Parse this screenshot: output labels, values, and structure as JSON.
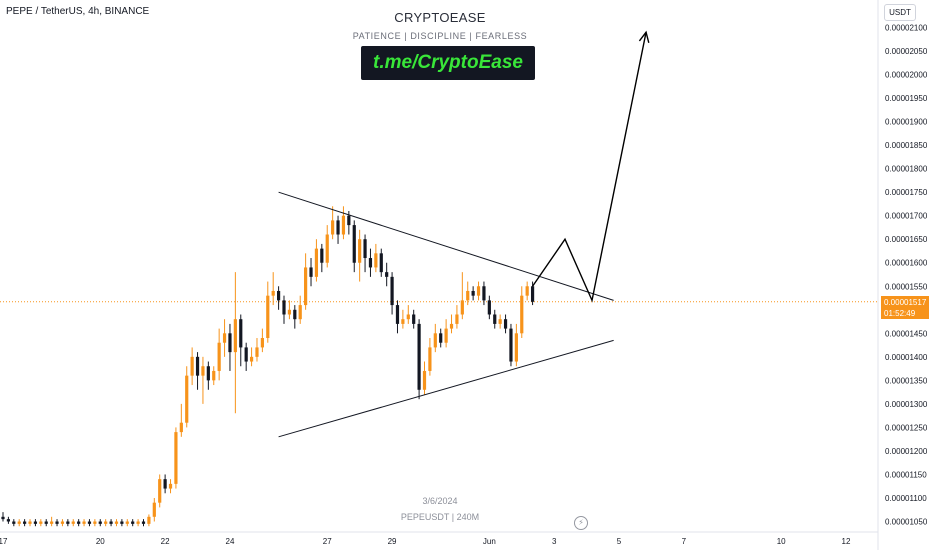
{
  "header": {
    "symbol_title": "PEPE / TetherUS, 4h, BINANCE",
    "brand_title": "CRYPTOEASE",
    "brand_subtitle": "PATIENCE  |  DISCIPLINE  |  FEARLESS",
    "link_text": "t.me/CryptoEase",
    "currency": "USDT"
  },
  "watermark": {
    "date": "3/6/2024",
    "symbol": "PEPEUSDT | 240M"
  },
  "price_tag": {
    "price": "0.00001517",
    "countdown": "01:52:49"
  },
  "icons": {
    "flash": "lightning-icon"
  },
  "colors": {
    "up": "#f7931a",
    "down": "#131722",
    "current_line": "#f7931a",
    "trendline": "#131722"
  },
  "chart_data": {
    "type": "candlestick",
    "title": "",
    "xlabel": "",
    "ylabel": "",
    "y_ticks": [
      "0.00001050",
      "0.00001100",
      "0.00001150",
      "0.00001200",
      "0.00001250",
      "0.00001300",
      "0.00001350",
      "0.00001400",
      "0.00001450",
      "0.00001500",
      "0.00001550",
      "0.00001600",
      "0.00001650",
      "0.00001700",
      "0.00001750",
      "0.00001800",
      "0.00001850",
      "0.00001900",
      "0.00001950",
      "0.00002000",
      "0.00002050",
      "0.00002100"
    ],
    "x_ticks": [
      {
        "label": "17",
        "t": 0
      },
      {
        "label": "20",
        "t": 18
      },
      {
        "label": "22",
        "t": 30
      },
      {
        "label": "24",
        "t": 42
      },
      {
        "label": "27",
        "t": 60
      },
      {
        "label": "29",
        "t": 72
      },
      {
        "label": "Jun",
        "t": 90
      },
      {
        "label": "3",
        "t": 102
      },
      {
        "label": "5",
        "t": 114
      },
      {
        "label": "7",
        "t": 126
      },
      {
        "label": "10",
        "t": 144
      },
      {
        "label": "12",
        "t": 156
      }
    ],
    "current_price": 1.517e-05,
    "candles": [
      [
        0,
        1.06,
        1.055,
        1.07,
        1.05
      ],
      [
        1,
        1.055,
        1.05,
        1.06,
        1.045
      ],
      [
        2,
        1.05,
        1.045,
        1.055,
        1.04
      ],
      [
        3,
        1.045,
        1.05,
        1.055,
        1.04
      ],
      [
        4,
        1.05,
        1.045,
        1.055,
        1.04
      ],
      [
        5,
        1.045,
        1.05,
        1.055,
        1.04
      ],
      [
        6,
        1.05,
        1.045,
        1.055,
        1.04
      ],
      [
        7,
        1.045,
        1.05,
        1.055,
        1.04
      ],
      [
        8,
        1.05,
        1.045,
        1.055,
        1.04
      ],
      [
        9,
        1.045,
        1.05,
        1.06,
        1.04
      ],
      [
        10,
        1.05,
        1.045,
        1.055,
        1.04
      ],
      [
        11,
        1.045,
        1.05,
        1.055,
        1.04
      ],
      [
        12,
        1.05,
        1.045,
        1.055,
        1.04
      ],
      [
        13,
        1.045,
        1.05,
        1.055,
        1.04
      ],
      [
        14,
        1.05,
        1.045,
        1.055,
        1.04
      ],
      [
        15,
        1.045,
        1.05,
        1.055,
        1.04
      ],
      [
        16,
        1.05,
        1.045,
        1.055,
        1.04
      ],
      [
        17,
        1.045,
        1.05,
        1.055,
        1.04
      ],
      [
        18,
        1.05,
        1.045,
        1.055,
        1.04
      ],
      [
        19,
        1.045,
        1.05,
        1.055,
        1.04
      ],
      [
        20,
        1.05,
        1.045,
        1.055,
        1.04
      ],
      [
        21,
        1.045,
        1.05,
        1.055,
        1.04
      ],
      [
        22,
        1.05,
        1.045,
        1.055,
        1.04
      ],
      [
        23,
        1.045,
        1.05,
        1.055,
        1.04
      ],
      [
        24,
        1.05,
        1.045,
        1.055,
        1.04
      ],
      [
        25,
        1.045,
        1.05,
        1.055,
        1.04
      ],
      [
        26,
        1.05,
        1.045,
        1.055,
        1.04
      ],
      [
        27,
        1.045,
        1.06,
        1.065,
        1.04
      ],
      [
        28,
        1.06,
        1.09,
        1.1,
        1.05
      ],
      [
        29,
        1.09,
        1.14,
        1.15,
        1.08
      ],
      [
        30,
        1.14,
        1.12,
        1.15,
        1.11
      ],
      [
        31,
        1.12,
        1.13,
        1.14,
        1.11
      ],
      [
        32,
        1.13,
        1.24,
        1.25,
        1.12
      ],
      [
        33,
        1.24,
        1.26,
        1.3,
        1.23
      ],
      [
        34,
        1.26,
        1.36,
        1.38,
        1.25
      ],
      [
        35,
        1.36,
        1.4,
        1.42,
        1.34
      ],
      [
        36,
        1.4,
        1.36,
        1.41,
        1.33
      ],
      [
        37,
        1.36,
        1.38,
        1.4,
        1.3
      ],
      [
        38,
        1.38,
        1.35,
        1.39,
        1.33
      ],
      [
        39,
        1.35,
        1.37,
        1.38,
        1.34
      ],
      [
        40,
        1.37,
        1.43,
        1.46,
        1.35
      ],
      [
        41,
        1.43,
        1.45,
        1.48,
        1.4
      ],
      [
        42,
        1.45,
        1.41,
        1.47,
        1.37
      ],
      [
        43,
        1.41,
        1.48,
        1.58,
        1.28
      ],
      [
        44,
        1.48,
        1.42,
        1.49,
        1.38
      ],
      [
        45,
        1.42,
        1.39,
        1.43,
        1.37
      ],
      [
        46,
        1.39,
        1.4,
        1.42,
        1.38
      ],
      [
        47,
        1.4,
        1.42,
        1.44,
        1.39
      ],
      [
        48,
        1.42,
        1.44,
        1.46,
        1.41
      ],
      [
        49,
        1.44,
        1.53,
        1.56,
        1.43
      ],
      [
        50,
        1.53,
        1.54,
        1.58,
        1.51
      ],
      [
        51,
        1.54,
        1.52,
        1.55,
        1.5
      ],
      [
        52,
        1.52,
        1.49,
        1.53,
        1.47
      ],
      [
        53,
        1.49,
        1.5,
        1.52,
        1.48
      ],
      [
        54,
        1.5,
        1.48,
        1.51,
        1.46
      ],
      [
        55,
        1.48,
        1.51,
        1.53,
        1.47
      ],
      [
        56,
        1.51,
        1.59,
        1.62,
        1.5
      ],
      [
        57,
        1.59,
        1.57,
        1.61,
        1.55
      ],
      [
        58,
        1.57,
        1.63,
        1.65,
        1.56
      ],
      [
        59,
        1.63,
        1.6,
        1.64,
        1.58
      ],
      [
        60,
        1.6,
        1.66,
        1.68,
        1.59
      ],
      [
        61,
        1.66,
        1.69,
        1.72,
        1.65
      ],
      [
        62,
        1.69,
        1.66,
        1.7,
        1.64
      ],
      [
        63,
        1.66,
        1.7,
        1.72,
        1.65
      ],
      [
        64,
        1.7,
        1.68,
        1.71,
        1.66
      ],
      [
        65,
        1.68,
        1.6,
        1.69,
        1.58
      ],
      [
        66,
        1.6,
        1.65,
        1.67,
        1.56
      ],
      [
        67,
        1.65,
        1.61,
        1.66,
        1.58
      ],
      [
        68,
        1.61,
        1.59,
        1.63,
        1.57
      ],
      [
        69,
        1.59,
        1.62,
        1.64,
        1.58
      ],
      [
        70,
        1.62,
        1.58,
        1.63,
        1.57
      ],
      [
        71,
        1.58,
        1.57,
        1.6,
        1.55
      ],
      [
        72,
        1.57,
        1.51,
        1.58,
        1.49
      ],
      [
        73,
        1.51,
        1.47,
        1.52,
        1.45
      ],
      [
        74,
        1.47,
        1.48,
        1.5,
        1.46
      ],
      [
        75,
        1.48,
        1.49,
        1.51,
        1.47
      ],
      [
        76,
        1.49,
        1.47,
        1.5,
        1.46
      ],
      [
        77,
        1.47,
        1.33,
        1.48,
        1.31
      ],
      [
        78,
        1.33,
        1.37,
        1.39,
        1.32
      ],
      [
        79,
        1.37,
        1.42,
        1.44,
        1.36
      ],
      [
        80,
        1.42,
        1.45,
        1.47,
        1.41
      ],
      [
        81,
        1.45,
        1.43,
        1.46,
        1.42
      ],
      [
        82,
        1.43,
        1.46,
        1.48,
        1.42
      ],
      [
        83,
        1.46,
        1.47,
        1.49,
        1.45
      ],
      [
        84,
        1.47,
        1.49,
        1.51,
        1.46
      ],
      [
        85,
        1.49,
        1.52,
        1.58,
        1.48
      ],
      [
        86,
        1.52,
        1.54,
        1.56,
        1.51
      ],
      [
        87,
        1.54,
        1.53,
        1.55,
        1.52
      ],
      [
        88,
        1.53,
        1.55,
        1.56,
        1.52
      ],
      [
        89,
        1.55,
        1.52,
        1.56,
        1.51
      ],
      [
        90,
        1.52,
        1.49,
        1.53,
        1.48
      ],
      [
        91,
        1.49,
        1.47,
        1.5,
        1.46
      ],
      [
        92,
        1.47,
        1.48,
        1.49,
        1.46
      ],
      [
        93,
        1.48,
        1.46,
        1.49,
        1.45
      ],
      [
        94,
        1.46,
        1.39,
        1.47,
        1.38
      ],
      [
        95,
        1.39,
        1.45,
        1.47,
        1.38
      ],
      [
        96,
        1.45,
        1.53,
        1.55,
        1.44
      ],
      [
        97,
        1.53,
        1.55,
        1.56,
        1.52
      ],
      [
        98,
        1.55,
        1.517,
        1.56,
        1.51
      ]
    ],
    "triangle": {
      "upper": [
        [
          51,
          1.75
        ],
        [
          113,
          1.52
        ]
      ],
      "lower": [
        [
          51,
          1.23
        ],
        [
          113,
          1.435
        ]
      ]
    },
    "projection": [
      [
        98,
        1.55
      ],
      [
        104,
        1.65
      ],
      [
        109,
        1.52
      ],
      [
        119,
        2.09
      ]
    ]
  }
}
